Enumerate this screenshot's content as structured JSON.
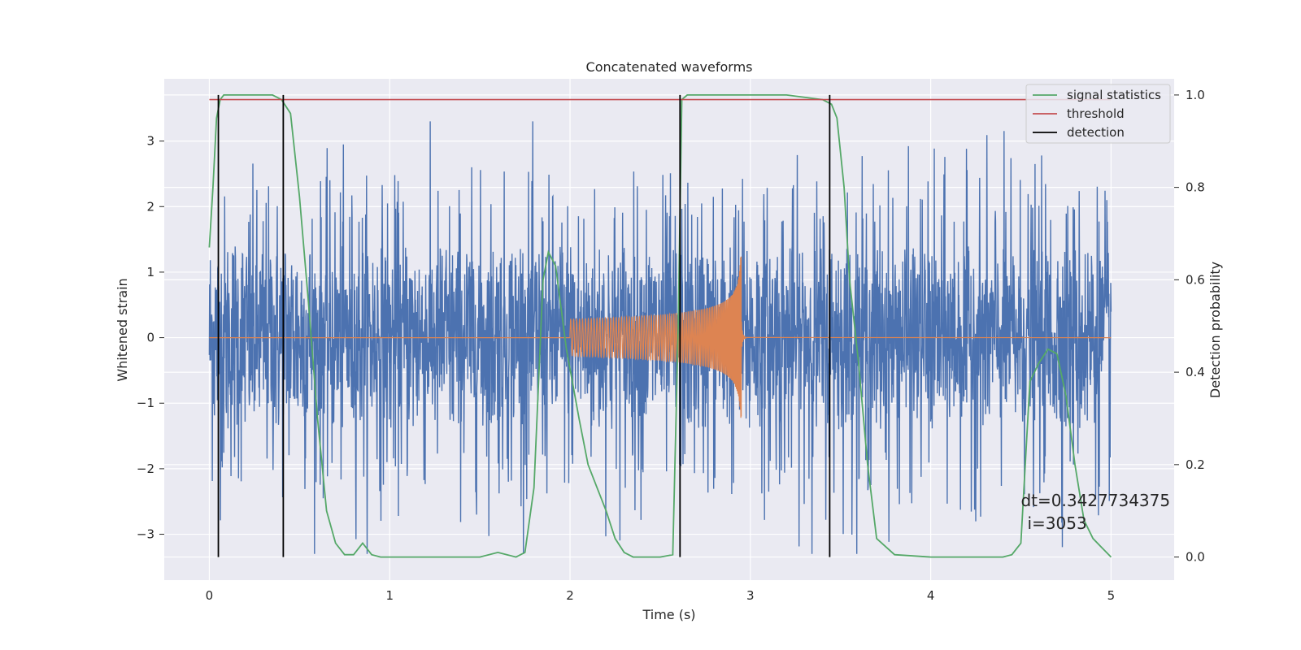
{
  "chart_data": {
    "type": "line",
    "title": "Concatenated waveforms",
    "xlabel": "Time (s)",
    "ylabel": "Whitened strain",
    "y2label": "Detection probability",
    "xlim": [
      -0.25,
      5.35
    ],
    "ylim": [
      -3.7,
      3.95
    ],
    "y2lim": [
      -0.05,
      1.035
    ],
    "xticks": [
      0,
      1,
      2,
      3,
      4,
      5
    ],
    "yticks": [
      -3,
      -2,
      -1,
      0,
      1,
      2,
      3
    ],
    "y2ticks": [
      0.0,
      0.2,
      0.4,
      0.6,
      0.8,
      1.0
    ],
    "y2tick_labels": [
      "0.0",
      "0.2",
      "0.4",
      "0.6",
      "0.8",
      "1.0"
    ],
    "ytick_labels": [
      "−3",
      "−2",
      "−1",
      "0",
      "1",
      "2",
      "3"
    ],
    "grid": true,
    "legend_position": "top-right",
    "series": [
      {
        "name": "",
        "axis": "left",
        "kind": "noise",
        "color": "#4c72b0",
        "x_range": [
          0,
          5
        ],
        "envelope": 2.3
      },
      {
        "name": "",
        "axis": "left",
        "kind": "chirp",
        "color": "#dd8452",
        "chirp_start": 2.0,
        "chirp_end": 2.95,
        "x_range": [
          0,
          5
        ],
        "peak_amplitude": 1.25
      },
      {
        "name": "signal statistics",
        "axis": "right",
        "color": "#55a868",
        "x": [
          0.0,
          0.02,
          0.04,
          0.06,
          0.08,
          0.1,
          0.2,
          0.35,
          0.4,
          0.45,
          0.5,
          0.55,
          0.6,
          0.65,
          0.7,
          0.75,
          0.8,
          0.85,
          0.9,
          0.95,
          1.0,
          1.2,
          1.5,
          1.6,
          1.65,
          1.7,
          1.75,
          1.8,
          1.85,
          1.88,
          1.92,
          1.98,
          2.05,
          2.1,
          2.15,
          2.2,
          2.25,
          2.3,
          2.35,
          2.4,
          2.5,
          2.57,
          2.6,
          2.62,
          2.65,
          3.0,
          3.2,
          3.4,
          3.45,
          3.48,
          3.52,
          3.55,
          3.6,
          3.65,
          3.7,
          3.8,
          4.0,
          4.2,
          4.4,
          4.45,
          4.5,
          4.55,
          4.6,
          4.65,
          4.7,
          4.75,
          4.8,
          4.85,
          4.9,
          4.95,
          5.0
        ],
        "y": [
          0.67,
          0.8,
          0.95,
          0.99,
          1.0,
          1.0,
          1.0,
          1.0,
          0.99,
          0.96,
          0.78,
          0.55,
          0.3,
          0.1,
          0.03,
          0.005,
          0.005,
          0.03,
          0.005,
          0.0,
          0.0,
          0.0,
          0.0,
          0.01,
          0.005,
          0.0,
          0.01,
          0.15,
          0.6,
          0.66,
          0.63,
          0.45,
          0.3,
          0.2,
          0.15,
          0.1,
          0.04,
          0.01,
          0.0,
          0.0,
          0.0,
          0.005,
          0.5,
          0.99,
          1.0,
          1.0,
          1.0,
          0.99,
          0.98,
          0.95,
          0.8,
          0.6,
          0.42,
          0.2,
          0.04,
          0.005,
          0.0,
          0.0,
          0.0,
          0.005,
          0.03,
          0.38,
          0.42,
          0.45,
          0.44,
          0.35,
          0.2,
          0.08,
          0.04,
          0.02,
          0.0
        ]
      },
      {
        "name": "threshold",
        "axis": "right",
        "color": "#c44e52",
        "x": [
          0.0,
          5.0
        ],
        "y": [
          0.99,
          0.99
        ]
      },
      {
        "name": "detection",
        "axis": "right",
        "color": "#000000",
        "kind": "vlines",
        "x": [
          0.05,
          0.41,
          2.61,
          3.44
        ],
        "ymin": 0.0,
        "ymax": 1.0
      }
    ],
    "annotation": {
      "line1": "dt=0.3427734375",
      "line2": "i=3053",
      "x": 4.5,
      "y2": 0.11
    }
  }
}
